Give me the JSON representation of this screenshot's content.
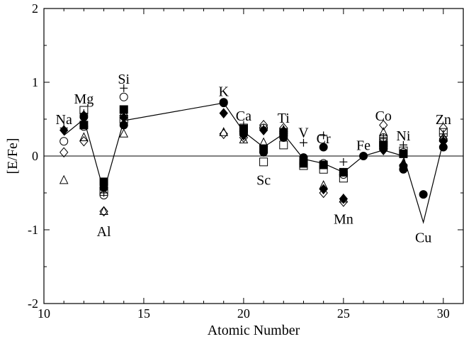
{
  "chart_data": {
    "type": "scatter",
    "title": "",
    "xlabel": "Atomic Number",
    "ylabel": "[E/Fe]",
    "xlim": [
      10,
      31
    ],
    "ylim": [
      -2,
      2
    ],
    "xticks": [
      10,
      15,
      20,
      25,
      30
    ],
    "yticks": [
      -2,
      -1,
      0,
      1,
      2
    ],
    "x_tick_labels": [
      "10",
      "15",
      "20",
      "25",
      "30"
    ],
    "y_tick_labels": [
      "-2",
      "-1",
      "0",
      "1",
      "2"
    ],
    "reference_line_y": 0,
    "grid": false,
    "legend": "none",
    "element_labels": [
      {
        "text": "Na",
        "x": 11,
        "y": 0.5
      },
      {
        "text": "Mg",
        "x": 12,
        "y": 0.78
      },
      {
        "text": "Al",
        "x": 13,
        "y": -1.02
      },
      {
        "text": "Si",
        "x": 14,
        "y": 1.05
      },
      {
        "text": "K",
        "x": 19,
        "y": 0.88
      },
      {
        "text": "Ca",
        "x": 20,
        "y": 0.55
      },
      {
        "text": "Sc",
        "x": 21,
        "y": -0.32
      },
      {
        "text": "Ti",
        "x": 22,
        "y": 0.52
      },
      {
        "text": "V",
        "x": 23,
        "y": 0.32
      },
      {
        "text": "Cr",
        "x": 24,
        "y": 0.24
      },
      {
        "text": "Fe",
        "x": 26,
        "y": 0.15
      },
      {
        "text": "Mn",
        "x": 25,
        "y": -0.85
      },
      {
        "text": "Co",
        "x": 27,
        "y": 0.55
      },
      {
        "text": "Ni",
        "x": 28,
        "y": 0.28
      },
      {
        "text": "Cu",
        "x": 29,
        "y": -1.1
      },
      {
        "text": "Zn",
        "x": 30,
        "y": 0.5
      }
    ],
    "line_series": {
      "x": [
        11,
        12,
        13,
        14,
        19,
        20,
        21,
        22,
        23,
        24,
        25,
        26,
        27,
        28,
        29,
        30
      ],
      "y": [
        0.28,
        0.5,
        -0.48,
        0.48,
        0.72,
        0.33,
        0.12,
        0.3,
        -0.04,
        -0.1,
        -0.22,
        0.0,
        0.08,
        0.0,
        -0.9,
        0.2
      ]
    },
    "series": [
      {
        "marker": "filled-circle",
        "x": [
          12,
          13,
          14,
          19,
          20,
          21,
          22,
          23,
          24,
          25,
          26,
          27,
          28,
          29,
          30
        ],
        "y": [
          0.53,
          -0.43,
          0.42,
          0.72,
          0.3,
          0.05,
          0.25,
          -0.02,
          0.12,
          -0.22,
          0.0,
          0.1,
          -0.18,
          -0.52,
          0.12
        ]
      },
      {
        "marker": "open-circle",
        "x": [
          11,
          12,
          13,
          14,
          19,
          20,
          21,
          22,
          23,
          24,
          25,
          27,
          28,
          30
        ],
        "y": [
          0.2,
          0.4,
          -0.53,
          0.8,
          0.73,
          0.33,
          0.38,
          0.33,
          -0.05,
          -0.1,
          -0.25,
          0.25,
          0.05,
          0.22
        ]
      },
      {
        "marker": "filled-square",
        "x": [
          12,
          13,
          14,
          20,
          21,
          22,
          23,
          24,
          25,
          27,
          28
        ],
        "y": [
          0.42,
          -0.35,
          0.63,
          0.36,
          0.1,
          0.32,
          -0.1,
          -0.12,
          -0.22,
          0.15,
          0.03
        ]
      },
      {
        "marker": "open-square",
        "x": [
          12,
          13,
          14,
          20,
          21,
          22,
          23,
          24,
          25,
          27,
          28,
          30
        ],
        "y": [
          0.62,
          -0.48,
          0.5,
          0.38,
          -0.08,
          0.15,
          -0.13,
          -0.18,
          -0.3,
          0.18,
          0.07,
          0.32
        ]
      },
      {
        "marker": "filled-diamond",
        "x": [
          11,
          12,
          13,
          14,
          19,
          20,
          21,
          22,
          23,
          24,
          25,
          27,
          28,
          30
        ],
        "y": [
          0.35,
          0.55,
          -0.42,
          0.52,
          0.58,
          0.28,
          0.35,
          0.28,
          -0.05,
          -0.45,
          -0.58,
          0.08,
          -0.12,
          0.2
        ]
      },
      {
        "marker": "open-diamond",
        "x": [
          11,
          12,
          13,
          14,
          19,
          20,
          21,
          22,
          23,
          24,
          25,
          27,
          28,
          30
        ],
        "y": [
          0.05,
          0.2,
          -0.75,
          0.55,
          0.3,
          0.25,
          0.42,
          0.38,
          -0.08,
          -0.5,
          -0.62,
          0.42,
          -0.13,
          0.38
        ]
      },
      {
        "marker": "open-triangle",
        "x": [
          11,
          12,
          13,
          14,
          19,
          20,
          21,
          22,
          23,
          24,
          25,
          27,
          28,
          30
        ],
        "y": [
          -0.33,
          0.25,
          -0.75,
          0.3,
          0.32,
          0.22,
          0.18,
          0.35,
          -0.06,
          -0.4,
          -0.58,
          0.32,
          -0.1,
          0.25
        ]
      },
      {
        "marker": "plus",
        "x": [
          11,
          12,
          13,
          14,
          20,
          21,
          22,
          23,
          24,
          25,
          27,
          28,
          30
        ],
        "y": [
          0.38,
          0.58,
          -0.5,
          0.92,
          0.42,
          0.38,
          0.35,
          0.18,
          0.28,
          -0.08,
          0.25,
          0.15,
          0.3
        ]
      }
    ]
  }
}
